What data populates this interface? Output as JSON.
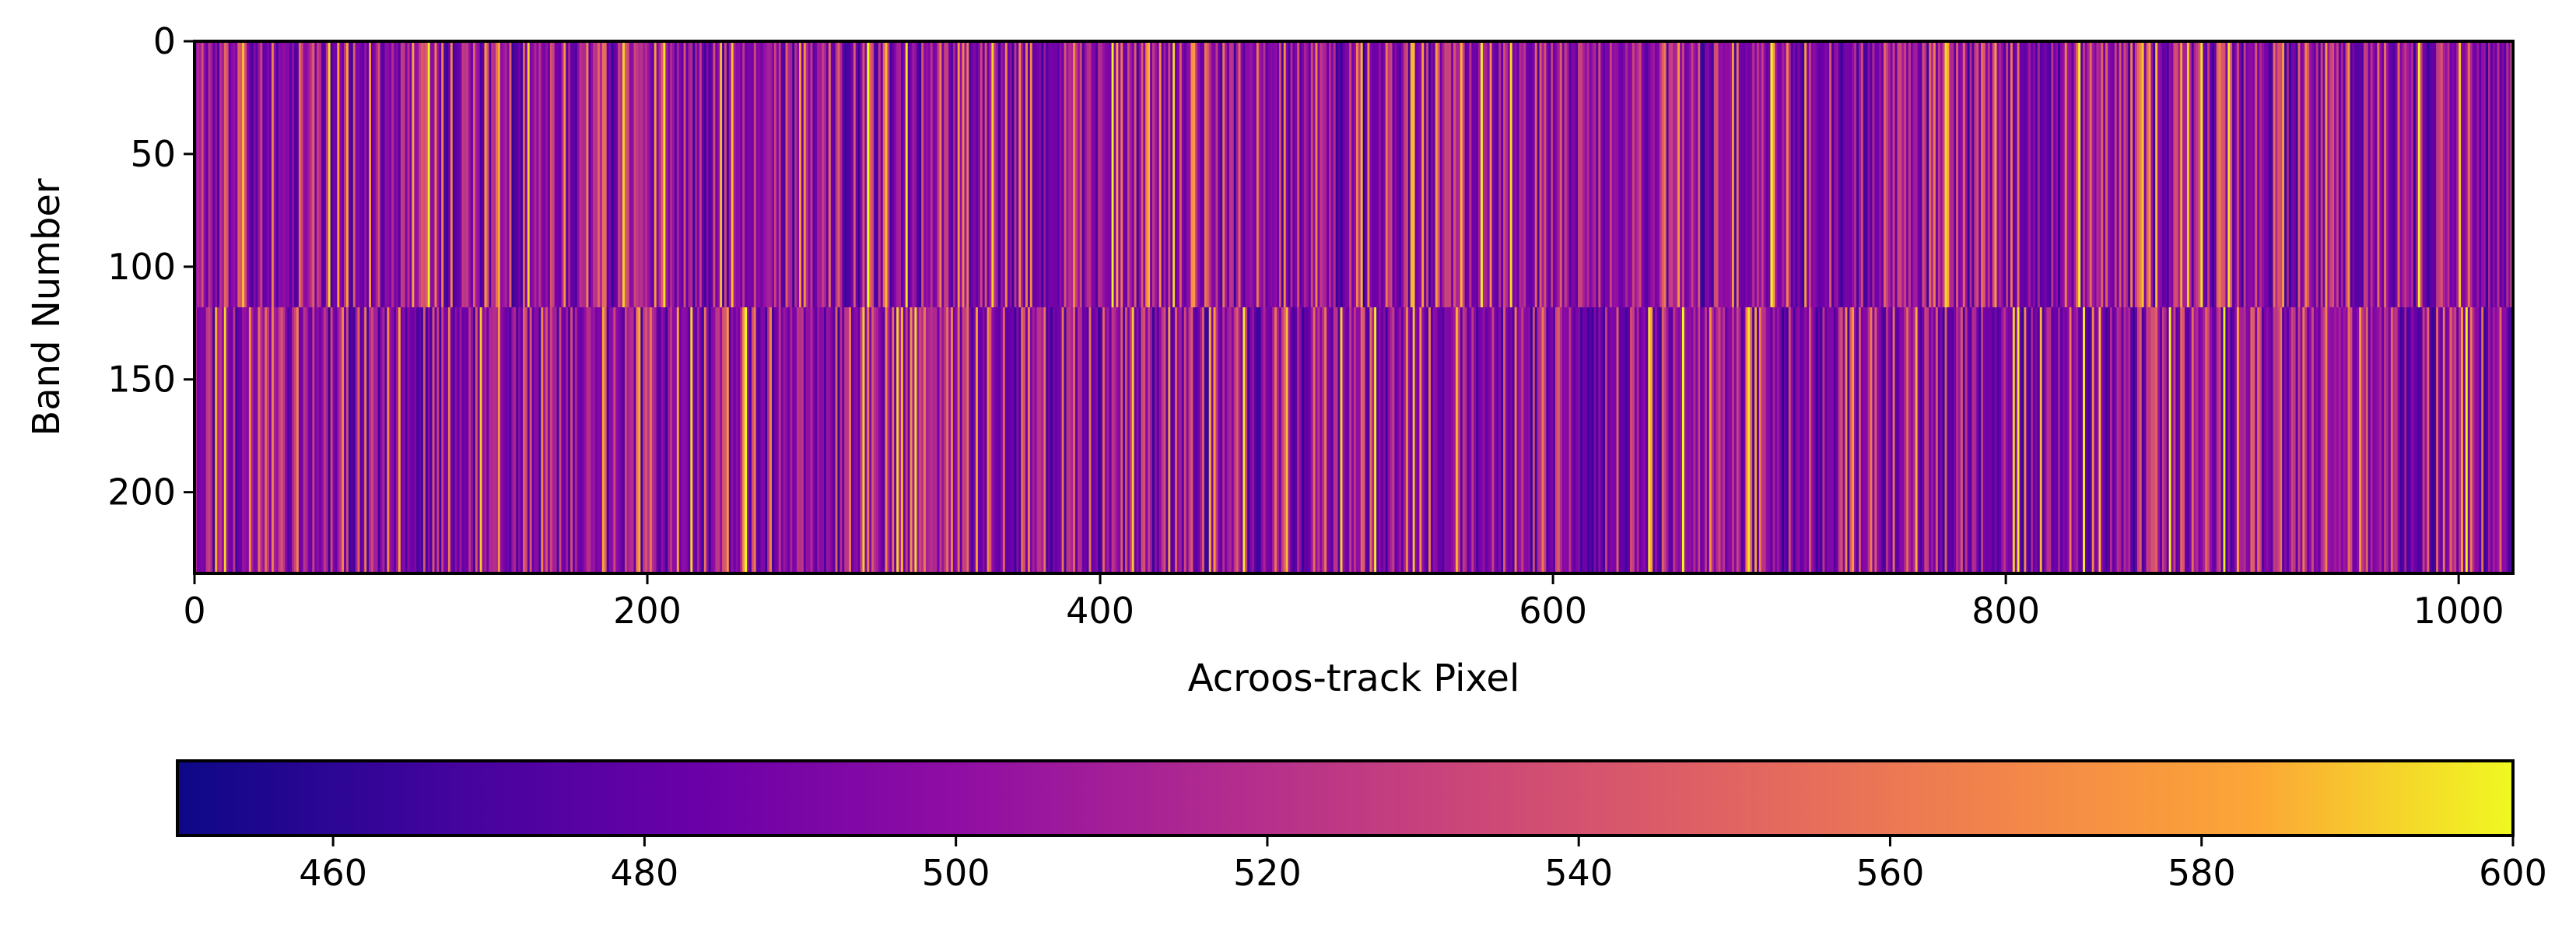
{
  "chart_data": [
    {
      "type": "heatmap",
      "title": "",
      "xlabel": "Acroos-track Pixel",
      "ylabel": "Band Number",
      "xlim": [
        0,
        1024
      ],
      "ylim": [
        236,
        0
      ],
      "x_ticks": [
        0,
        200,
        400,
        600,
        800,
        1000
      ],
      "y_ticks": [
        0,
        50,
        100,
        150,
        200
      ],
      "x_tick_labels": [
        "0",
        "200",
        "400",
        "600",
        "800",
        "1000"
      ],
      "y_tick_labels": [
        "0",
        "50",
        "100",
        "150",
        "200"
      ],
      "n_columns": 1024,
      "n_bands": 236,
      "band_split": 118,
      "colormap": "plasma",
      "vmin": 450,
      "vmax": 600,
      "description_values": {
        "typical_range": [
          460,
          600
        ],
        "pattern": "vertical column stripes; discontinuity between upper block (bands 0-117) and lower block (bands 118-235)"
      },
      "grid": false
    },
    {
      "type": "colorbar",
      "orientation": "horizontal",
      "colormap": "plasma",
      "vmin": 450,
      "vmax": 600,
      "ticks": [
        460,
        480,
        500,
        520,
        540,
        560,
        580,
        600
      ],
      "tick_labels": [
        "460",
        "480",
        "500",
        "520",
        "540",
        "560",
        "580",
        "600"
      ]
    }
  ]
}
